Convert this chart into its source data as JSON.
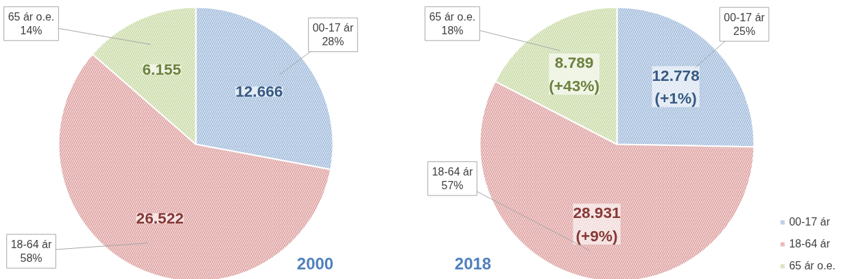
{
  "chart_data": [
    {
      "type": "pie",
      "title": "2000",
      "categories": [
        "00-17 ár",
        "18-64 ár",
        "65 ár o.e."
      ],
      "values": [
        12666,
        26522,
        6155
      ],
      "colors": [
        "#4f81bd",
        "#c0504d",
        "#9bbb59"
      ],
      "value_labels": [
        "12.666",
        "26.522",
        "6.155"
      ],
      "annotations": [
        {
          "text": "28%",
          "x": "00-17 ár"
        },
        {
          "text": "58%",
          "x": "18-64 ár"
        },
        {
          "text": "14%",
          "x": "65 ár o.e."
        }
      ],
      "legend": false
    },
    {
      "type": "pie",
      "title": "2018",
      "categories": [
        "00-17 ár",
        "18-64 ár",
        "65 ár o.e."
      ],
      "values": [
        12778,
        28931,
        8789
      ],
      "colors": [
        "#4f81bd",
        "#c0504d",
        "#9bbb59"
      ],
      "value_labels": [
        "12.778\n(+1%)",
        "28.931\n(+9%)",
        "8.789\n(+43%)"
      ],
      "annotations": [
        {
          "text": "25%",
          "x": "00-17 ár"
        },
        {
          "text": "57%",
          "x": "18-64 ár"
        },
        {
          "text": "18%",
          "x": "65 ár o.e."
        }
      ],
      "legend": "bottom right"
    }
  ]
}
